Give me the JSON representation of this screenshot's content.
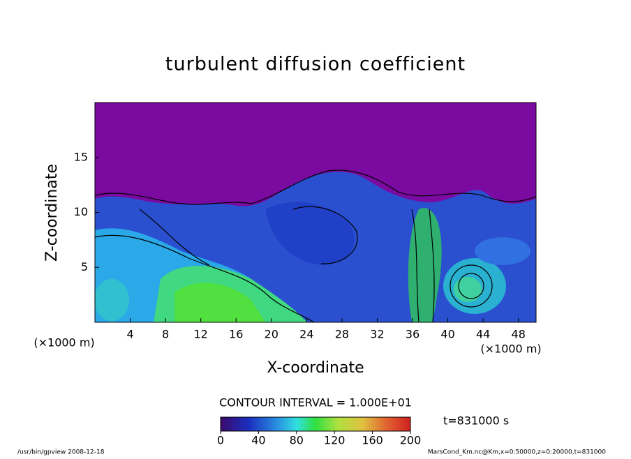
{
  "chart_data": {
    "type": "contour",
    "title": "turbulent diffusion coefficient",
    "xlabel": "X-coordinate",
    "ylabel": "Z-coordinate",
    "xunit": "(×1000 m)",
    "yunit": "(×1000 m)",
    "xlim": [
      0,
      50
    ],
    "xticks": [
      4,
      8,
      12,
      16,
      20,
      24,
      28,
      32,
      36,
      40,
      44,
      48
    ],
    "ylim": [
      0,
      20
    ],
    "yticks": [
      5,
      10,
      15
    ],
    "contour_interval": "CONTOUR INTERVAL = 1.000E+01",
    "colorbar": {
      "lim": [
        0,
        200
      ],
      "ticks": [
        0,
        40,
        80,
        120,
        160,
        200
      ]
    },
    "time": "t=831000 s",
    "footer_left": "/usr/bin/gpview  2008-12-18",
    "footer_right": "MarsCond_Km.nc@Km,x=0:50000,z=0:20000,t=831000"
  }
}
